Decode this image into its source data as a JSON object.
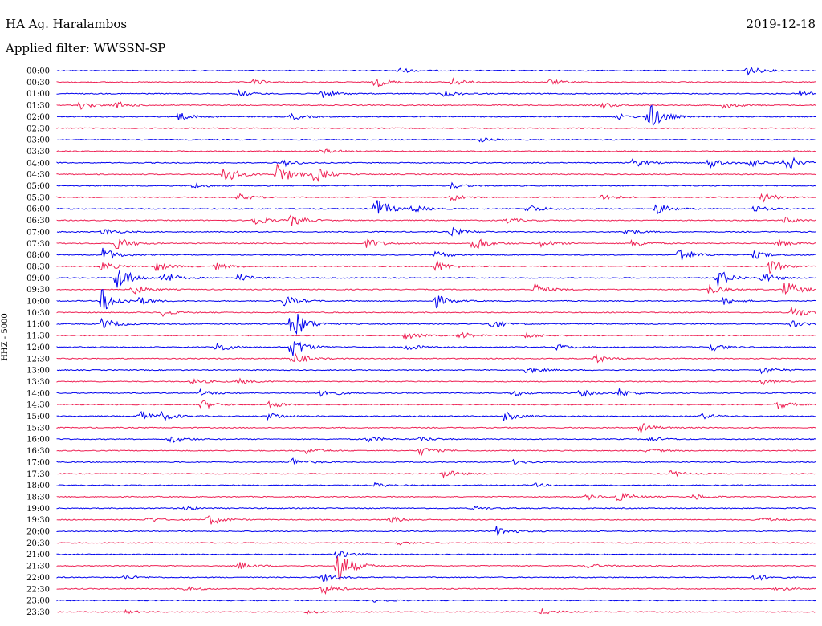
{
  "header": {
    "station": "HA Ag. Haralambos",
    "date": "2019-12-18",
    "filter": "Applied filter: WWSSN-SP"
  },
  "chart_data": {
    "type": "line",
    "title": "HA Ag. Haralambos",
    "subtitle": "Applied filter: WWSSN-SP",
    "date": "2019-12-18",
    "ylabel": "HHZ - 5000",
    "series_colors": [
      "#0000ee",
      "#ee2255"
    ],
    "rows": [
      {
        "label": "00:00",
        "events": [
          [
            0.45,
            0.5
          ],
          [
            0.91,
            0.8
          ]
        ]
      },
      {
        "label": "00:30",
        "events": [
          [
            0.26,
            0.5
          ],
          [
            0.42,
            0.9
          ],
          [
            0.52,
            0.7
          ],
          [
            0.65,
            0.5
          ]
        ]
      },
      {
        "label": "01:00",
        "events": [
          [
            0.24,
            0.5
          ],
          [
            0.35,
            0.8
          ],
          [
            0.51,
            0.5
          ],
          [
            0.98,
            0.6
          ]
        ]
      },
      {
        "label": "01:30",
        "events": [
          [
            0.03,
            0.7
          ],
          [
            0.08,
            0.6
          ],
          [
            0.72,
            0.5
          ],
          [
            0.88,
            0.6
          ]
        ]
      },
      {
        "label": "02:00",
        "events": [
          [
            0.16,
            0.8
          ],
          [
            0.31,
            0.6
          ],
          [
            0.74,
            0.5
          ],
          [
            0.78,
            2.6
          ]
        ]
      },
      {
        "label": "02:30",
        "events": []
      },
      {
        "label": "03:00",
        "events": [
          [
            0.56,
            0.4
          ]
        ]
      },
      {
        "label": "03:30",
        "events": [
          [
            0.35,
            0.4
          ]
        ]
      },
      {
        "label": "04:00",
        "events": [
          [
            0.3,
            0.6
          ],
          [
            0.76,
            0.8
          ],
          [
            0.86,
            0.9
          ],
          [
            0.91,
            0.9
          ],
          [
            0.96,
            1.6
          ]
        ]
      },
      {
        "label": "04:30",
        "events": [
          [
            0.22,
            1.8
          ],
          [
            0.29,
            2.2
          ],
          [
            0.34,
            1.4
          ]
        ]
      },
      {
        "label": "05:00",
        "events": [
          [
            0.18,
            0.5
          ],
          [
            0.52,
            0.5
          ]
        ]
      },
      {
        "label": "05:30",
        "events": [
          [
            0.24,
            0.6
          ],
          [
            0.52,
            0.6
          ],
          [
            0.72,
            0.7
          ],
          [
            0.93,
            0.9
          ]
        ]
      },
      {
        "label": "06:00",
        "events": [
          [
            0.42,
            2.0
          ],
          [
            0.47,
            0.6
          ],
          [
            0.62,
            0.9
          ],
          [
            0.79,
            1.0
          ],
          [
            0.92,
            0.6
          ]
        ]
      },
      {
        "label": "06:30",
        "events": [
          [
            0.26,
            0.9
          ],
          [
            0.31,
            1.0
          ],
          [
            0.59,
            0.6
          ],
          [
            0.96,
            0.6
          ]
        ]
      },
      {
        "label": "07:00",
        "events": [
          [
            0.06,
            0.7
          ],
          [
            0.52,
            0.8
          ],
          [
            0.75,
            0.6
          ]
        ]
      },
      {
        "label": "07:30",
        "events": [
          [
            0.08,
            1.2
          ],
          [
            0.41,
            0.9
          ],
          [
            0.55,
            1.5
          ],
          [
            0.64,
            0.7
          ],
          [
            0.76,
            0.8
          ],
          [
            0.95,
            0.7
          ]
        ]
      },
      {
        "label": "08:00",
        "events": [
          [
            0.06,
            1.4
          ],
          [
            0.5,
            0.6
          ],
          [
            0.82,
            1.6
          ],
          [
            0.92,
            0.7
          ]
        ]
      },
      {
        "label": "08:30",
        "events": [
          [
            0.06,
            0.9
          ],
          [
            0.13,
            0.9
          ],
          [
            0.21,
            0.6
          ],
          [
            0.5,
            1.0
          ],
          [
            0.94,
            1.2
          ]
        ]
      },
      {
        "label": "09:00",
        "events": [
          [
            0.08,
            2.4
          ],
          [
            0.14,
            1.1
          ],
          [
            0.24,
            0.7
          ],
          [
            0.87,
            1.8
          ],
          [
            0.93,
            0.9
          ]
        ]
      },
      {
        "label": "09:30",
        "events": [
          [
            0.1,
            1.0
          ],
          [
            0.63,
            1.1
          ],
          [
            0.86,
            0.9
          ],
          [
            0.96,
            1.6
          ]
        ]
      },
      {
        "label": "10:00",
        "events": [
          [
            0.06,
            2.2
          ],
          [
            0.11,
            0.6
          ],
          [
            0.3,
            1.0
          ],
          [
            0.5,
            1.1
          ],
          [
            0.88,
            0.6
          ]
        ]
      },
      {
        "label": "10:30",
        "events": [
          [
            0.14,
            0.6
          ],
          [
            0.97,
            1.2
          ]
        ]
      },
      {
        "label": "11:00",
        "events": [
          [
            0.06,
            1.1
          ],
          [
            0.31,
            3.0
          ],
          [
            0.57,
            0.9
          ],
          [
            0.97,
            0.6
          ]
        ]
      },
      {
        "label": "11:30",
        "events": [
          [
            0.46,
            0.7
          ],
          [
            0.53,
            0.7
          ],
          [
            0.62,
            0.5
          ]
        ]
      },
      {
        "label": "12:00",
        "events": [
          [
            0.21,
            1.0
          ],
          [
            0.31,
            1.8
          ],
          [
            0.46,
            0.7
          ],
          [
            0.66,
            0.5
          ],
          [
            0.86,
            0.9
          ]
        ]
      },
      {
        "label": "12:30",
        "events": [
          [
            0.31,
            1.2
          ],
          [
            0.71,
            0.8
          ]
        ]
      },
      {
        "label": "13:00",
        "events": [
          [
            0.62,
            0.6
          ],
          [
            0.93,
            0.7
          ]
        ]
      },
      {
        "label": "13:30",
        "events": [
          [
            0.18,
            0.5
          ],
          [
            0.24,
            0.5
          ],
          [
            0.93,
            0.5
          ]
        ]
      },
      {
        "label": "14:00",
        "events": [
          [
            0.19,
            0.6
          ],
          [
            0.35,
            0.8
          ],
          [
            0.6,
            0.5
          ],
          [
            0.69,
            0.6
          ],
          [
            0.74,
            0.8
          ]
        ]
      },
      {
        "label": "14:30",
        "events": [
          [
            0.19,
            0.9
          ],
          [
            0.28,
            0.6
          ],
          [
            0.95,
            0.7
          ]
        ]
      },
      {
        "label": "15:00",
        "events": [
          [
            0.11,
            1.0
          ],
          [
            0.14,
            0.7
          ],
          [
            0.28,
            0.7
          ],
          [
            0.59,
            0.9
          ],
          [
            0.85,
            0.5
          ]
        ]
      },
      {
        "label": "15:30",
        "events": [
          [
            0.77,
            0.9
          ]
        ]
      },
      {
        "label": "16:00",
        "events": [
          [
            0.15,
            0.7
          ],
          [
            0.41,
            0.5
          ],
          [
            0.48,
            0.4
          ],
          [
            0.78,
            0.5
          ]
        ]
      },
      {
        "label": "16:30",
        "events": [
          [
            0.33,
            0.6
          ],
          [
            0.48,
            0.7
          ],
          [
            0.78,
            0.4
          ]
        ]
      },
      {
        "label": "17:00",
        "events": [
          [
            0.31,
            0.7
          ],
          [
            0.6,
            0.4
          ]
        ]
      },
      {
        "label": "17:30",
        "events": [
          [
            0.51,
            0.8
          ],
          [
            0.81,
            0.5
          ]
        ]
      },
      {
        "label": "18:00",
        "events": [
          [
            0.42,
            0.4
          ],
          [
            0.63,
            0.3
          ]
        ]
      },
      {
        "label": "18:30",
        "events": [
          [
            0.7,
            0.5
          ],
          [
            0.74,
            0.9
          ],
          [
            0.84,
            0.5
          ]
        ]
      },
      {
        "label": "19:00",
        "events": [
          [
            0.17,
            0.4
          ],
          [
            0.55,
            0.3
          ]
        ]
      },
      {
        "label": "19:30",
        "events": [
          [
            0.12,
            0.5
          ],
          [
            0.2,
            1.0
          ],
          [
            0.44,
            0.6
          ],
          [
            0.93,
            0.5
          ]
        ]
      },
      {
        "label": "20:00",
        "events": [
          [
            0.58,
            0.9
          ]
        ]
      },
      {
        "label": "20:30",
        "events": [
          [
            0.45,
            0.3
          ]
        ]
      },
      {
        "label": "21:00",
        "events": [
          [
            0.37,
            0.7
          ]
        ]
      },
      {
        "label": "21:30",
        "events": [
          [
            0.24,
            0.7
          ],
          [
            0.37,
            3.2
          ],
          [
            0.7,
            0.4
          ]
        ]
      },
      {
        "label": "22:00",
        "events": [
          [
            0.09,
            0.4
          ],
          [
            0.35,
            0.7
          ],
          [
            0.92,
            0.7
          ]
        ]
      },
      {
        "label": "22:30",
        "events": [
          [
            0.17,
            0.4
          ],
          [
            0.35,
            1.0
          ],
          [
            0.95,
            0.4
          ]
        ]
      },
      {
        "label": "23:00",
        "events": [
          [
            0.42,
            0.3
          ]
        ]
      },
      {
        "label": "23:30",
        "events": [
          [
            0.09,
            0.3
          ],
          [
            0.33,
            0.3
          ],
          [
            0.64,
            0.5
          ]
        ]
      }
    ]
  }
}
